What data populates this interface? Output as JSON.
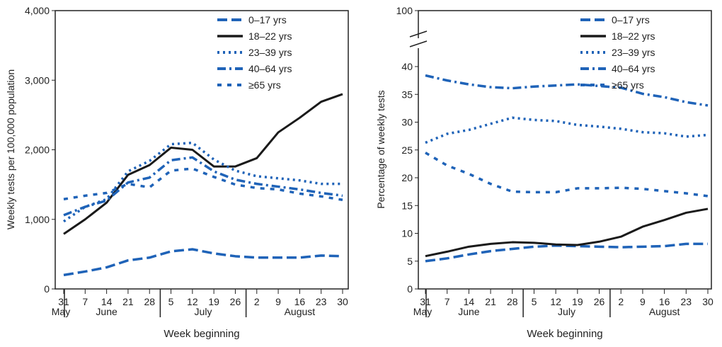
{
  "chart_data": [
    {
      "type": "line",
      "ylabel": "Weekly tests per 100,000 population",
      "xlabel": "Week beginning",
      "x": [
        "31",
        "7",
        "14",
        "21",
        "28",
        "5",
        "12",
        "19",
        "26",
        "2",
        "9",
        "16",
        "23",
        "30"
      ],
      "months": [
        "May",
        "June",
        "July",
        "August"
      ],
      "ylim": [
        0,
        4000
      ],
      "yticks": [
        "0",
        "1,000",
        "2,000",
        "3,000",
        "4,000"
      ],
      "ytick_values": [
        0,
        1000,
        2000,
        3000,
        4000
      ],
      "legend": "top-right",
      "series": [
        {
          "name": "0–17 yrs",
          "style": "dashed",
          "color": "#1f63b8",
          "values": [
            200,
            250,
            310,
            410,
            450,
            540,
            570,
            510,
            470,
            450,
            450,
            450,
            480,
            470
          ]
        },
        {
          "name": "18–22 yrs",
          "style": "solid",
          "color": "#1a1a1a",
          "values": [
            790,
            1000,
            1240,
            1640,
            1780,
            2030,
            2000,
            1760,
            1760,
            1880,
            2250,
            2460,
            2690,
            2800
          ]
        },
        {
          "name": "23–39 yrs",
          "style": "dotted",
          "color": "#1f63b8",
          "values": [
            970,
            1180,
            1290,
            1690,
            1840,
            2080,
            2100,
            1860,
            1700,
            1620,
            1590,
            1560,
            1510,
            1510
          ]
        },
        {
          "name": "40–64 yrs",
          "style": "dashdot",
          "color": "#1f63b8",
          "values": [
            1060,
            1180,
            1270,
            1530,
            1600,
            1850,
            1890,
            1690,
            1570,
            1510,
            1470,
            1430,
            1380,
            1340
          ]
        },
        {
          "name": "≥65 yrs",
          "style": "shortdash",
          "color": "#1f63b8",
          "values": [
            1290,
            1340,
            1380,
            1510,
            1460,
            1700,
            1730,
            1610,
            1500,
            1450,
            1430,
            1370,
            1330,
            1280
          ]
        }
      ]
    },
    {
      "type": "line",
      "ylabel": "Percentage of weekly tests",
      "xlabel": "Week beginning",
      "x": [
        "31",
        "7",
        "14",
        "21",
        "28",
        "5",
        "12",
        "19",
        "26",
        "2",
        "9",
        "16",
        "23",
        "30"
      ],
      "months": [
        "May",
        "June",
        "July",
        "August"
      ],
      "ylim": [
        0,
        100
      ],
      "axis_break": [
        42,
        100
      ],
      "yticks": [
        "0",
        "5",
        "10",
        "15",
        "20",
        "25",
        "30",
        "35",
        "40",
        "100"
      ],
      "ytick_values": [
        0,
        5,
        10,
        15,
        20,
        25,
        30,
        35,
        40,
        100
      ],
      "legend": "top-right",
      "series": [
        {
          "name": "0–17 yrs",
          "style": "dashed",
          "color": "#1f63b8",
          "values": [
            5.0,
            5.5,
            6.2,
            6.8,
            7.2,
            7.6,
            7.8,
            7.7,
            7.6,
            7.5,
            7.6,
            7.7,
            8.1,
            8.1
          ]
        },
        {
          "name": "18–22 yrs",
          "style": "solid",
          "color": "#1a1a1a",
          "values": [
            5.9,
            6.7,
            7.6,
            8.1,
            8.4,
            8.3,
            8.0,
            7.9,
            8.5,
            9.4,
            11.2,
            12.4,
            13.7,
            14.4
          ]
        },
        {
          "name": "23–39 yrs",
          "style": "dotted",
          "color": "#1f63b8",
          "values": [
            26.3,
            27.9,
            28.6,
            29.7,
            30.8,
            30.4,
            30.2,
            29.5,
            29.2,
            28.8,
            28.2,
            28.0,
            27.4,
            27.7
          ]
        },
        {
          "name": "40–64 yrs",
          "style": "dashdot",
          "color": "#1f63b8",
          "values": [
            38.4,
            37.5,
            36.8,
            36.3,
            36.1,
            36.4,
            36.6,
            36.8,
            36.5,
            36.2,
            35.1,
            34.5,
            33.6,
            33.0
          ]
        },
        {
          "name": "≥65 yrs",
          "style": "shortdash",
          "color": "#1f63b8",
          "values": [
            24.5,
            22.2,
            20.7,
            18.9,
            17.5,
            17.4,
            17.4,
            18.1,
            18.1,
            18.2,
            18.0,
            17.6,
            17.2,
            16.7
          ]
        }
      ]
    }
  ]
}
